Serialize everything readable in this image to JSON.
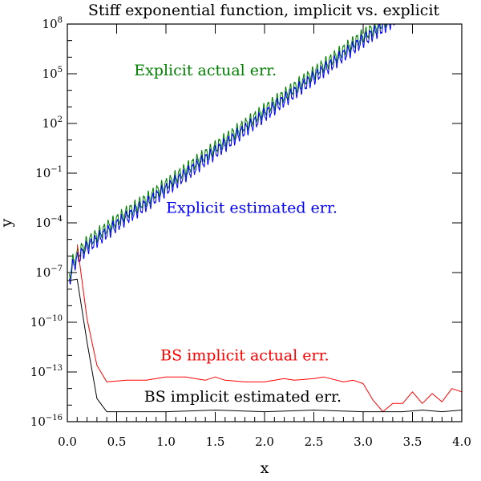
{
  "chart_data": {
    "type": "line",
    "title": "Stiff exponential function, implicit vs. explicit",
    "xlabel": "x",
    "ylabel": "y",
    "xlim": [
      0,
      4.0
    ],
    "ylim_log10": [
      -16,
      8
    ],
    "y_scale": "log",
    "grid": false,
    "x_ticks": [
      "0.0",
      "0.5",
      "1.0",
      "1.5",
      "2.0",
      "2.5",
      "3.0",
      "3.5",
      "4.0"
    ],
    "x_tick_values": [
      0,
      0.5,
      1.0,
      1.5,
      2.0,
      2.5,
      3.0,
      3.5,
      4.0
    ],
    "y_ticks": [
      {
        "base": "10",
        "exp": "8",
        "value": 8
      },
      {
        "base": "10",
        "exp": "5",
        "value": 5
      },
      {
        "base": "10",
        "exp": "2",
        "value": 2
      },
      {
        "base": "10",
        "exp": "−1",
        "value": -1
      },
      {
        "base": "10",
        "exp": "−4",
        "value": -4
      },
      {
        "base": "10",
        "exp": "−7",
        "value": -7
      },
      {
        "base": "10",
        "exp": "−10",
        "value": -10
      },
      {
        "base": "10",
        "exp": "−13",
        "value": -13
      },
      {
        "base": "10",
        "exp": "−16",
        "value": -16
      }
    ],
    "series": [
      {
        "name": "Explicit actual err.",
        "color": "#008000",
        "style": "oscillating",
        "x": [
          0.02,
          0.05,
          0.1,
          0.2,
          0.4,
          0.6,
          0.8,
          1.0,
          1.2,
          1.4,
          1.6,
          1.8,
          2.0,
          2.2,
          2.4,
          2.6,
          2.8,
          3.0,
          3.2,
          3.35
        ],
        "log10y": [
          -7.3,
          -6.4,
          -5.9,
          -5.2,
          -4.3,
          -3.4,
          -2.6,
          -1.7,
          -0.8,
          0.1,
          1.0,
          1.9,
          2.8,
          3.7,
          4.6,
          5.5,
          6.4,
          7.3,
          8.1,
          8.7
        ],
        "label": {
          "text": "Explicit actual err.",
          "x": 1.4,
          "log10y": 4.9
        }
      },
      {
        "name": "Explicit estimated err.",
        "color": "#0000ff",
        "style": "oscillating",
        "x": [
          0.02,
          0.05,
          0.1,
          0.2,
          0.4,
          0.6,
          0.8,
          1.0,
          1.2,
          1.4,
          1.6,
          1.8,
          2.0,
          2.2,
          2.4,
          2.6,
          2.8,
          3.0,
          3.2,
          3.35
        ],
        "log10y": [
          -7.6,
          -6.7,
          -6.2,
          -5.5,
          -4.6,
          -3.7,
          -2.9,
          -2.0,
          -1.1,
          -0.2,
          0.7,
          1.6,
          2.5,
          3.4,
          4.3,
          5.2,
          6.1,
          7.0,
          7.8,
          8.4
        ],
        "label": {
          "text": "Explicit estimated err.",
          "x": 1.87,
          "log10y": -3.4
        }
      },
      {
        "name": "BS implicit actual err.",
        "color": "#ff0000",
        "style": "plain",
        "x": [
          0.1,
          0.2,
          0.3,
          0.4,
          0.6,
          0.8,
          1.0,
          1.2,
          1.4,
          1.5,
          1.6,
          1.8,
          2.0,
          2.2,
          2.3,
          2.5,
          2.6,
          2.8,
          2.9,
          3.0,
          3.1,
          3.2,
          3.3,
          3.4,
          3.5,
          3.6,
          3.7,
          3.8,
          3.9,
          4.0
        ],
        "log10y": [
          -5.3,
          -9.8,
          -12.6,
          -13.6,
          -13.5,
          -13.5,
          -13.3,
          -13.3,
          -13.5,
          -13.3,
          -13.5,
          -13.6,
          -13.6,
          -13.4,
          -13.5,
          -13.4,
          -13.3,
          -13.6,
          -13.5,
          -13.7,
          -14.7,
          -15.4,
          -14.9,
          -14.9,
          -14.2,
          -14.9,
          -14.3,
          -14.8,
          -14.0,
          -14.2
        ],
        "label": {
          "text": "BS implicit actual err.",
          "x": 1.8,
          "log10y": -12.3
        }
      },
      {
        "name": "BS implicit estimated err.",
        "color": "#000000",
        "style": "plain",
        "x": [
          0.0,
          0.1,
          0.2,
          0.3,
          0.4,
          0.5,
          1.0,
          1.5,
          2.0,
          2.5,
          3.0,
          3.2,
          3.4,
          3.6,
          3.8,
          4.0
        ],
        "log10y": [
          -7.5,
          -7.4,
          -11.2,
          -14.6,
          -15.4,
          -15.4,
          -15.4,
          -15.3,
          -15.4,
          -15.3,
          -15.4,
          -15.4,
          -15.4,
          -15.3,
          -15.4,
          -15.3
        ],
        "label": {
          "text": "BS implicit estimated err.",
          "x": 1.78,
          "log10y": -14.8
        }
      }
    ]
  }
}
